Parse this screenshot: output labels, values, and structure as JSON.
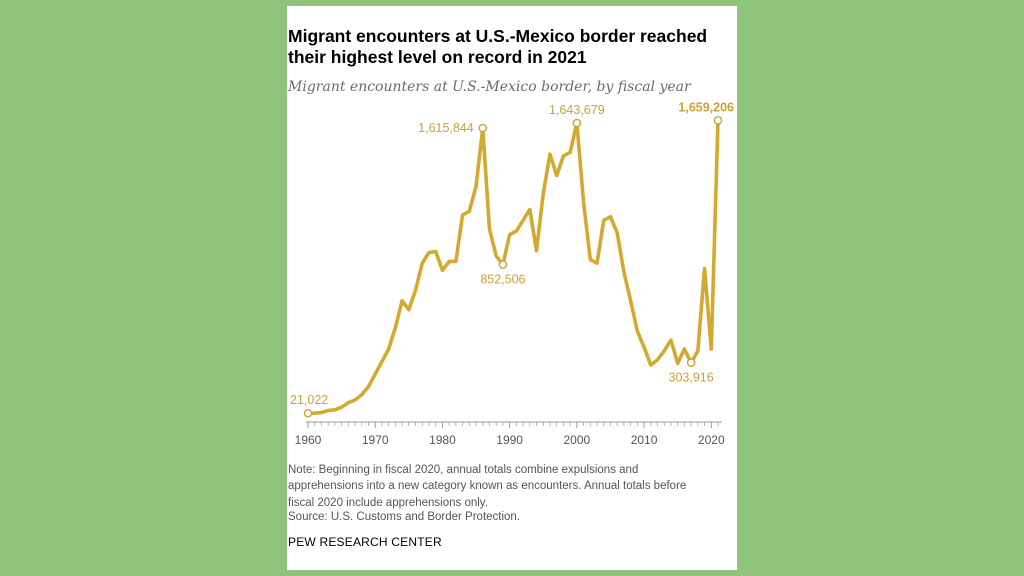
{
  "colors": {
    "background": "#8fc57a",
    "card": "#ffffff",
    "line": "#d4a92f",
    "label": "#c9a23a",
    "axis": "#555555",
    "tick": "#999999"
  },
  "chart_data": {
    "type": "line",
    "title": "Migrant encounters at U.S.-Mexico border reached their highest level on record in 2021",
    "subtitle": "Migrant encounters at U.S.-Mexico border, by fiscal year",
    "xlabel": "",
    "ylabel": "",
    "xlim": [
      1960,
      2021
    ],
    "ylim": [
      0,
      1700000
    ],
    "x_ticks": [
      1960,
      1970,
      1980,
      1990,
      2000,
      2010,
      2020
    ],
    "grid": false,
    "legend": "none",
    "series": [
      {
        "x": [
          1960,
          1961,
          1962,
          1963,
          1964,
          1965,
          1966,
          1967,
          1968,
          1969,
          1970,
          1971,
          1972,
          1973,
          1974,
          1975,
          1976,
          1977,
          1978,
          1979,
          1980,
          1981,
          1982,
          1983,
          1984,
          1985,
          1986,
          1987,
          1988,
          1989,
          1990,
          1991,
          1992,
          1993,
          1994,
          1995,
          1996,
          1997,
          1998,
          1999,
          2000,
          2001,
          2002,
          2003,
          2004,
          2005,
          2006,
          2007,
          2008,
          2009,
          2010,
          2011,
          2012,
          2013,
          2014,
          2015,
          2016,
          2017,
          2018,
          2019,
          2020,
          2021
        ],
        "y": [
          21022,
          22000,
          25000,
          36000,
          40000,
          55000,
          80000,
          95000,
          125000,
          170000,
          240000,
          310000,
          380000,
          500000,
          650000,
          600000,
          710000,
          860000,
          920000,
          925000,
          820000,
          870000,
          870000,
          1130000,
          1150000,
          1290000,
          1615844,
          1050000,
          900000,
          852506,
          1020000,
          1040000,
          1100000,
          1160000,
          930000,
          1250000,
          1470000,
          1350000,
          1460000,
          1480000,
          1643679,
          1200000,
          880000,
          860000,
          1100000,
          1120000,
          1030000,
          810000,
          650000,
          480000,
          390000,
          290000,
          320000,
          370000,
          430000,
          300000,
          380000,
          303916,
          370000,
          830000,
          380000,
          1659206
        ]
      }
    ],
    "annotations": [
      {
        "x": 1960,
        "y": 21022,
        "label": "21,022",
        "position": "above"
      },
      {
        "x": 1986,
        "y": 1615844,
        "label": "1,615,844",
        "position": "left"
      },
      {
        "x": 1989,
        "y": 852506,
        "label": "852,506",
        "position": "below"
      },
      {
        "x": 2000,
        "y": 1643679,
        "label": "1,643,679",
        "position": "above"
      },
      {
        "x": 2017,
        "y": 303916,
        "label": "303,916",
        "position": "below"
      },
      {
        "x": 2021,
        "y": 1659206,
        "label": "1,659,206",
        "position": "above",
        "bold": true
      }
    ]
  },
  "notes": {
    "note_lines": [
      "Note: Beginning in fiscal 2020, annual totals combine expulsions and",
      "apprehensions into a new category known as encounters. Annual totals before",
      "fiscal 2020 include apprehensions only."
    ],
    "source": "Source: U.S. Customs and Border Protection.",
    "brand": "PEW RESEARCH CENTER"
  }
}
